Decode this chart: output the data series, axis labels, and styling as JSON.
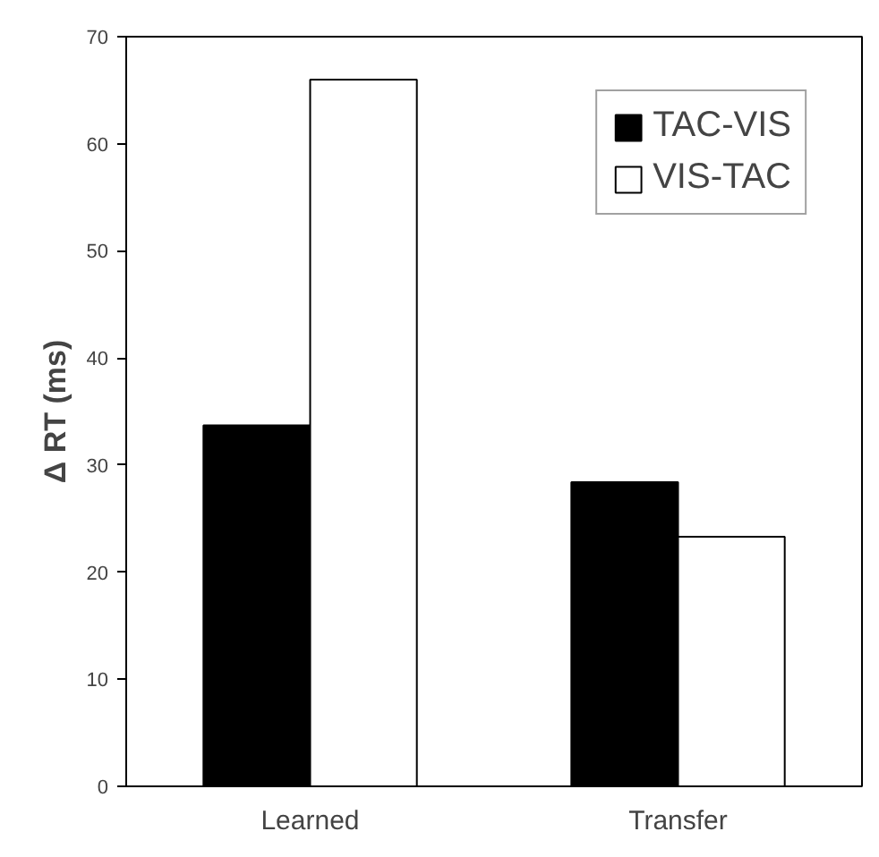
{
  "chart_data": {
    "type": "bar",
    "ylabel": "Δ RT (ms)",
    "categories": [
      "Learned",
      "Transfer"
    ],
    "series": [
      {
        "name": "TAC-VIS",
        "color": "#000000",
        "values": [
          33.7,
          28.4
        ]
      },
      {
        "name": "VIS-TAC",
        "color": "#ffffff",
        "values": [
          66.0,
          23.3
        ]
      }
    ],
    "ylim": [
      0,
      70
    ],
    "yticks": [
      0,
      10,
      20,
      30,
      40,
      50,
      60,
      70
    ],
    "grid": false,
    "legend": "top right"
  }
}
